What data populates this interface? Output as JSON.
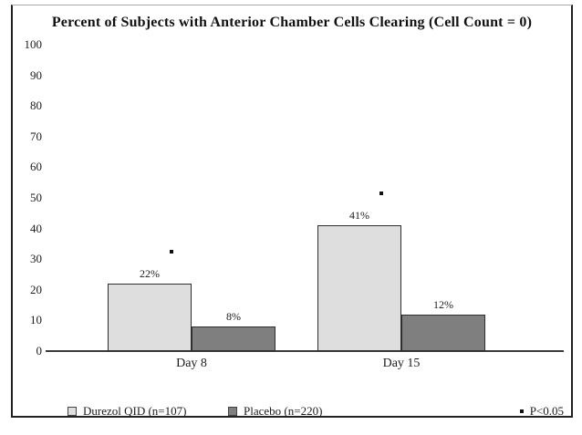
{
  "chart_data": {
    "type": "bar",
    "title": "Percent of Subjects with Anterior Chamber Cells Clearing (Cell Count = 0)",
    "categories": [
      "Day 8",
      "Day 15"
    ],
    "series": [
      {
        "name": "Durezol QID (n=107)",
        "color": "#dedede",
        "values": [
          22,
          41
        ],
        "data_labels": [
          "22%",
          "41%"
        ],
        "significant": [
          true,
          true
        ]
      },
      {
        "name": "Placebo (n=220)",
        "color": "#7f7f7f",
        "values": [
          8,
          12
        ],
        "data_labels": [
          "8%",
          "12%"
        ],
        "significant": [
          false,
          false
        ]
      }
    ],
    "xlabel": "",
    "ylabel": "",
    "ylim": [
      0,
      100
    ],
    "yticks": [
      0,
      10,
      20,
      30,
      40,
      50,
      60,
      70,
      80,
      90,
      100
    ],
    "grid": false,
    "legend_position": "bottom",
    "significance_note": {
      "marker": "*",
      "text": "P<0.05"
    }
  }
}
